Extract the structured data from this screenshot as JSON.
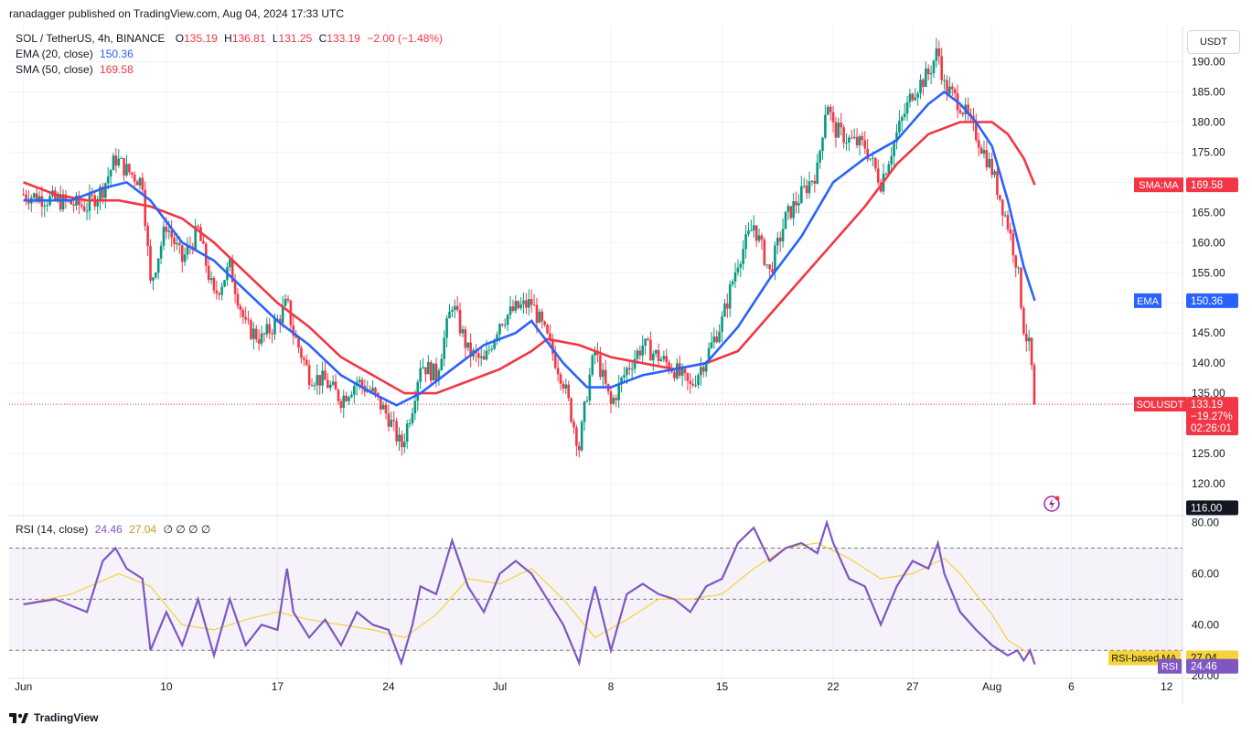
{
  "header": {
    "publisher_line": "ranadagger published on TradingView.com, Aug 04, 2024 17:33 UTC"
  },
  "legend": {
    "symbol": "SOL / TetherUS, 4h, BINANCE",
    "o_label": "O",
    "o": "135.19",
    "h_label": "H",
    "h": "136.81",
    "l_label": "L",
    "l": "131.25",
    "c_label": "C",
    "c": "133.19",
    "change": "−2.00 (−1.48%)",
    "ema_label": "EMA (20, close)",
    "ema_value": "150.36",
    "sma_label": "SMA (50, close)",
    "sma_value": "169.58",
    "rsi_label": "RSI (14, close)",
    "rsi_value": "24.46",
    "rsi_ma_value": "27.04",
    "rsi_extras": "∅  ∅  ∅  ∅"
  },
  "currency": "USDT",
  "footer": {
    "brand": "TradingView"
  },
  "colors": {
    "up": "#089981",
    "down": "#f23645",
    "ema": "#2962ff",
    "sma": "#f23645",
    "rsi": "#7e57c2",
    "rsi_ma": "#f5d33a",
    "grid": "#f0f3fa"
  },
  "chart_data": {
    "type": "candlestick",
    "symbol": "SOLUSDT",
    "timeframe": "4h",
    "exchange": "BINANCE",
    "price_axis_ticks": [
      120,
      125,
      135,
      140,
      145,
      150,
      155,
      160,
      165,
      170,
      175,
      180,
      185,
      190
    ],
    "price_range": [
      115,
      196
    ],
    "x_axis_ticks": [
      "Jun",
      "10",
      "17",
      "24",
      "Jul",
      "8",
      "15",
      "22",
      "27",
      "Aug",
      "6",
      "12"
    ],
    "x_tick_days": [
      0,
      9,
      16,
      23,
      30,
      37,
      44,
      51,
      56,
      61,
      66,
      72
    ],
    "time_range_days": [
      -0.9,
      73
    ],
    "last_bar_day": 63.7,
    "price_labels": [
      {
        "name": "SMA:MA",
        "value": "169.58",
        "color": "#f23645"
      },
      {
        "name": "EMA",
        "value": "150.36",
        "color": "#2962ff"
      },
      {
        "name": "SOLUSDT",
        "value": "133.19",
        "change": "−19.27%",
        "countdown": "02:26:01",
        "color": "#f23645"
      },
      {
        "name": "",
        "value": "116.00",
        "color": "#131722"
      }
    ],
    "close_path": [
      [
        0,
        168
      ],
      [
        2,
        167
      ],
      [
        4,
        166
      ],
      [
        5,
        169
      ],
      [
        5.8,
        174
      ],
      [
        6.5,
        172
      ],
      [
        7.5,
        170
      ],
      [
        8,
        153
      ],
      [
        9,
        163
      ],
      [
        10,
        157
      ],
      [
        11,
        162
      ],
      [
        12,
        151
      ],
      [
        13,
        156
      ],
      [
        14,
        146
      ],
      [
        15,
        144
      ],
      [
        16,
        147
      ],
      [
        16.6,
        150
      ],
      [
        17,
        145
      ],
      [
        18,
        138
      ],
      [
        19,
        137
      ],
      [
        20,
        134
      ],
      [
        21,
        137
      ],
      [
        22,
        135
      ],
      [
        23,
        131
      ],
      [
        23.8,
        126
      ],
      [
        24.5,
        133
      ],
      [
        25,
        140
      ],
      [
        26,
        138
      ],
      [
        27,
        150
      ],
      [
        28,
        142
      ],
      [
        29,
        140
      ],
      [
        30,
        147
      ],
      [
        31,
        149
      ],
      [
        32,
        150
      ],
      [
        33,
        144
      ],
      [
        34,
        137
      ],
      [
        35,
        126
      ],
      [
        35.6,
        137
      ],
      [
        36,
        142
      ],
      [
        37,
        133
      ],
      [
        38,
        139
      ],
      [
        39,
        143
      ],
      [
        40,
        141
      ],
      [
        41,
        139
      ],
      [
        42,
        136
      ],
      [
        43,
        141
      ],
      [
        44,
        147
      ],
      [
        45,
        157
      ],
      [
        46,
        163
      ],
      [
        47,
        155
      ],
      [
        48,
        164
      ],
      [
        49,
        168
      ],
      [
        50,
        172
      ],
      [
        50.6,
        184
      ],
      [
        51,
        179
      ],
      [
        52,
        177
      ],
      [
        53,
        176
      ],
      [
        54,
        170
      ],
      [
        55,
        178
      ],
      [
        56,
        185
      ],
      [
        57,
        188
      ],
      [
        57.6,
        192
      ],
      [
        58,
        186
      ],
      [
        59,
        183
      ],
      [
        60,
        178
      ],
      [
        61,
        172
      ],
      [
        62,
        163
      ],
      [
        62.6,
        156
      ],
      [
        63,
        146
      ],
      [
        63.4,
        142
      ],
      [
        63.7,
        133.19
      ]
    ],
    "series": [
      {
        "name": "EMA (20, close)",
        "last": 150.36,
        "points": [
          [
            0,
            167
          ],
          [
            3,
            167
          ],
          [
            5,
            169
          ],
          [
            6.5,
            170
          ],
          [
            8,
            167
          ],
          [
            10,
            160
          ],
          [
            12,
            157
          ],
          [
            14,
            152
          ],
          [
            16,
            147
          ],
          [
            18,
            143
          ],
          [
            20,
            138
          ],
          [
            22,
            135
          ],
          [
            23.5,
            133
          ],
          [
            25,
            135
          ],
          [
            27,
            139
          ],
          [
            29,
            143
          ],
          [
            31,
            145
          ],
          [
            32,
            147
          ],
          [
            34,
            140
          ],
          [
            35.5,
            136
          ],
          [
            37,
            136
          ],
          [
            39,
            138
          ],
          [
            41,
            139
          ],
          [
            43,
            140
          ],
          [
            45,
            146
          ],
          [
            47,
            154
          ],
          [
            49,
            161
          ],
          [
            51,
            170
          ],
          [
            53,
            174
          ],
          [
            55,
            177
          ],
          [
            57,
            183
          ],
          [
            58,
            185
          ],
          [
            59,
            183
          ],
          [
            60,
            180
          ],
          [
            61,
            176
          ],
          [
            62,
            167
          ],
          [
            63,
            156
          ],
          [
            63.7,
            150.36
          ]
        ]
      },
      {
        "name": "SMA (50, close)",
        "last": 169.58,
        "points": [
          [
            0,
            170
          ],
          [
            2,
            168
          ],
          [
            4,
            167
          ],
          [
            6,
            167
          ],
          [
            8,
            166
          ],
          [
            10,
            164
          ],
          [
            12,
            160
          ],
          [
            14,
            155
          ],
          [
            16,
            150
          ],
          [
            18,
            146
          ],
          [
            20,
            141
          ],
          [
            22,
            138
          ],
          [
            24,
            135
          ],
          [
            26,
            135
          ],
          [
            28,
            137
          ],
          [
            30,
            139
          ],
          [
            32,
            142
          ],
          [
            33,
            144
          ],
          [
            35,
            143
          ],
          [
            37,
            141
          ],
          [
            39,
            140
          ],
          [
            41,
            139
          ],
          [
            43,
            140
          ],
          [
            45,
            142
          ],
          [
            47,
            148
          ],
          [
            49,
            154
          ],
          [
            51,
            160
          ],
          [
            53,
            166
          ],
          [
            55,
            173
          ],
          [
            57,
            178
          ],
          [
            59,
            180
          ],
          [
            61,
            180
          ],
          [
            62,
            178
          ],
          [
            63,
            174
          ],
          [
            63.7,
            169.58
          ]
        ]
      }
    ],
    "rsi": {
      "name": "RSI (14, close)",
      "axis_ticks": [
        20,
        40,
        60,
        80
      ],
      "range": [
        19,
        82
      ],
      "bands": [
        30,
        50,
        70
      ],
      "labels": [
        {
          "name": "RSI-based MA",
          "value": "27.04",
          "color": "#f5d33a"
        },
        {
          "name": "RSI",
          "value": "24.46",
          "color": "#7e57c2"
        }
      ],
      "values": [
        [
          0,
          48
        ],
        [
          2,
          50
        ],
        [
          4,
          45
        ],
        [
          5,
          65
        ],
        [
          5.8,
          70
        ],
        [
          6.5,
          62
        ],
        [
          7.5,
          58
        ],
        [
          8,
          30
        ],
        [
          9,
          45
        ],
        [
          10,
          32
        ],
        [
          11,
          50
        ],
        [
          12,
          28
        ],
        [
          13,
          50
        ],
        [
          14,
          32
        ],
        [
          15,
          40
        ],
        [
          16,
          38
        ],
        [
          16.6,
          62
        ],
        [
          17,
          45
        ],
        [
          18,
          35
        ],
        [
          19,
          42
        ],
        [
          20,
          32
        ],
        [
          21,
          45
        ],
        [
          22,
          40
        ],
        [
          23,
          38
        ],
        [
          23.8,
          25
        ],
        [
          24.5,
          40
        ],
        [
          25,
          55
        ],
        [
          26,
          52
        ],
        [
          27,
          73
        ],
        [
          28,
          55
        ],
        [
          29,
          45
        ],
        [
          30,
          60
        ],
        [
          31,
          65
        ],
        [
          32,
          60
        ],
        [
          33,
          50
        ],
        [
          34,
          40
        ],
        [
          35,
          25
        ],
        [
          35.6,
          45
        ],
        [
          36,
          55
        ],
        [
          37,
          30
        ],
        [
          38,
          52
        ],
        [
          39,
          56
        ],
        [
          40,
          52
        ],
        [
          41,
          50
        ],
        [
          42,
          45
        ],
        [
          43,
          55
        ],
        [
          44,
          58
        ],
        [
          45,
          72
        ],
        [
          46,
          78
        ],
        [
          47,
          65
        ],
        [
          48,
          70
        ],
        [
          49,
          72
        ],
        [
          50,
          68
        ],
        [
          50.6,
          80
        ],
        [
          51,
          72
        ],
        [
          52,
          58
        ],
        [
          53,
          55
        ],
        [
          54,
          40
        ],
        [
          55,
          55
        ],
        [
          56,
          65
        ],
        [
          57,
          62
        ],
        [
          57.6,
          72
        ],
        [
          58,
          60
        ],
        [
          59,
          45
        ],
        [
          60,
          38
        ],
        [
          61,
          32
        ],
        [
          62,
          28
        ],
        [
          62.6,
          30
        ],
        [
          63,
          26
        ],
        [
          63.4,
          30
        ],
        [
          63.7,
          24.46
        ]
      ],
      "ma_values": [
        [
          0,
          48
        ],
        [
          3,
          52
        ],
        [
          6,
          60
        ],
        [
          8,
          55
        ],
        [
          10,
          40
        ],
        [
          12,
          38
        ],
        [
          14,
          42
        ],
        [
          16,
          45
        ],
        [
          18,
          42
        ],
        [
          20,
          40
        ],
        [
          22,
          38
        ],
        [
          24,
          35
        ],
        [
          26,
          44
        ],
        [
          28,
          58
        ],
        [
          30,
          56
        ],
        [
          32,
          62
        ],
        [
          34,
          50
        ],
        [
          36,
          35
        ],
        [
          38,
          42
        ],
        [
          40,
          50
        ],
        [
          42,
          50
        ],
        [
          44,
          52
        ],
        [
          46,
          62
        ],
        [
          48,
          70
        ],
        [
          50,
          72
        ],
        [
          52,
          66
        ],
        [
          54,
          58
        ],
        [
          56,
          60
        ],
        [
          58,
          66
        ],
        [
          59,
          60
        ],
        [
          61,
          44
        ],
        [
          62,
          34
        ],
        [
          63,
          30
        ],
        [
          63.7,
          27.04
        ]
      ]
    }
  }
}
